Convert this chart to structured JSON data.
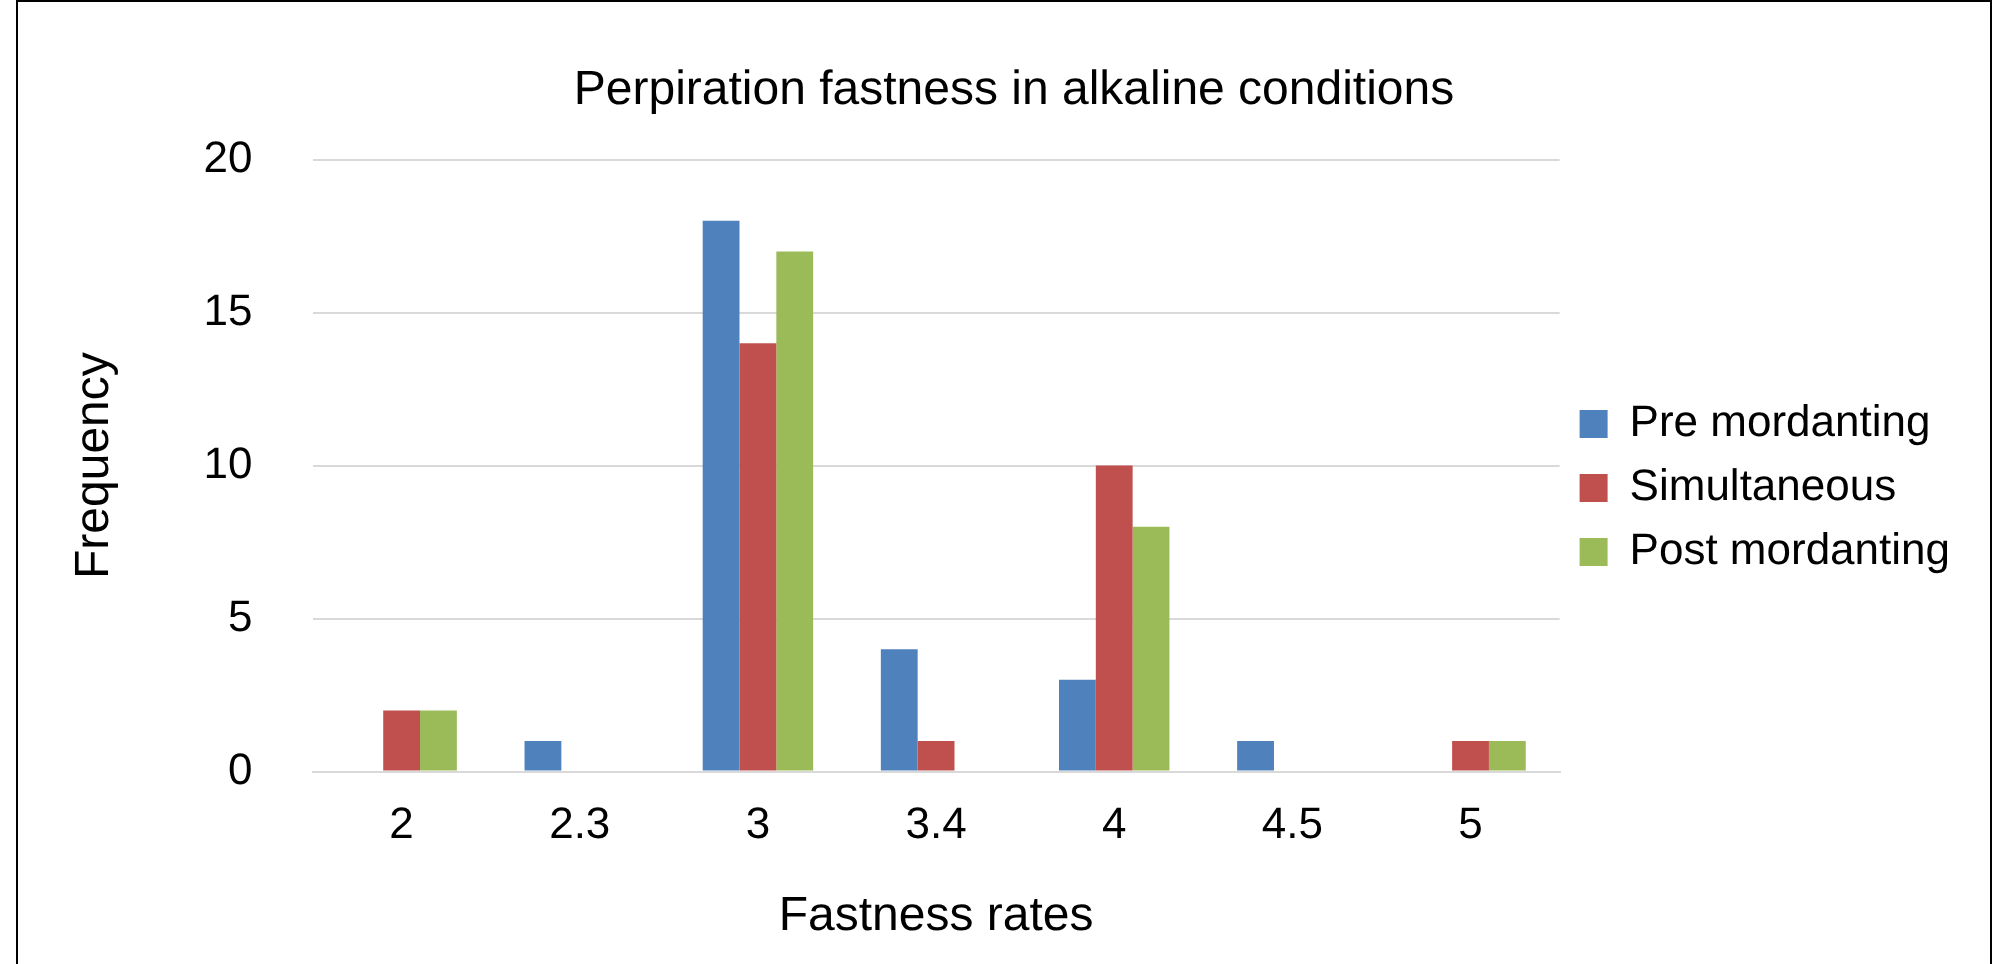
{
  "chart_data": {
    "type": "bar",
    "title": "Perpiration fastness in alkaline conditions",
    "xlabel": "Fastness rates",
    "ylabel": "Frequency",
    "categories": [
      "2",
      "2.3",
      "3",
      "3.4",
      "4",
      "4.5",
      "5"
    ],
    "series": [
      {
        "name": "Pre mordanting",
        "color": "#4f81bd",
        "values": [
          0,
          1,
          18,
          4,
          3,
          1,
          0
        ]
      },
      {
        "name": "Simultaneous",
        "color": "#c0504d",
        "values": [
          2,
          0,
          14,
          1,
          10,
          0,
          1
        ]
      },
      {
        "name": "Post mordanting",
        "color": "#9bbb59",
        "values": [
          2,
          0,
          17,
          0,
          8,
          0,
          1
        ]
      }
    ],
    "ylim": [
      0,
      20
    ],
    "yticks": [
      0,
      5,
      10,
      15,
      20
    ],
    "grid": "y",
    "legend": "right"
  }
}
